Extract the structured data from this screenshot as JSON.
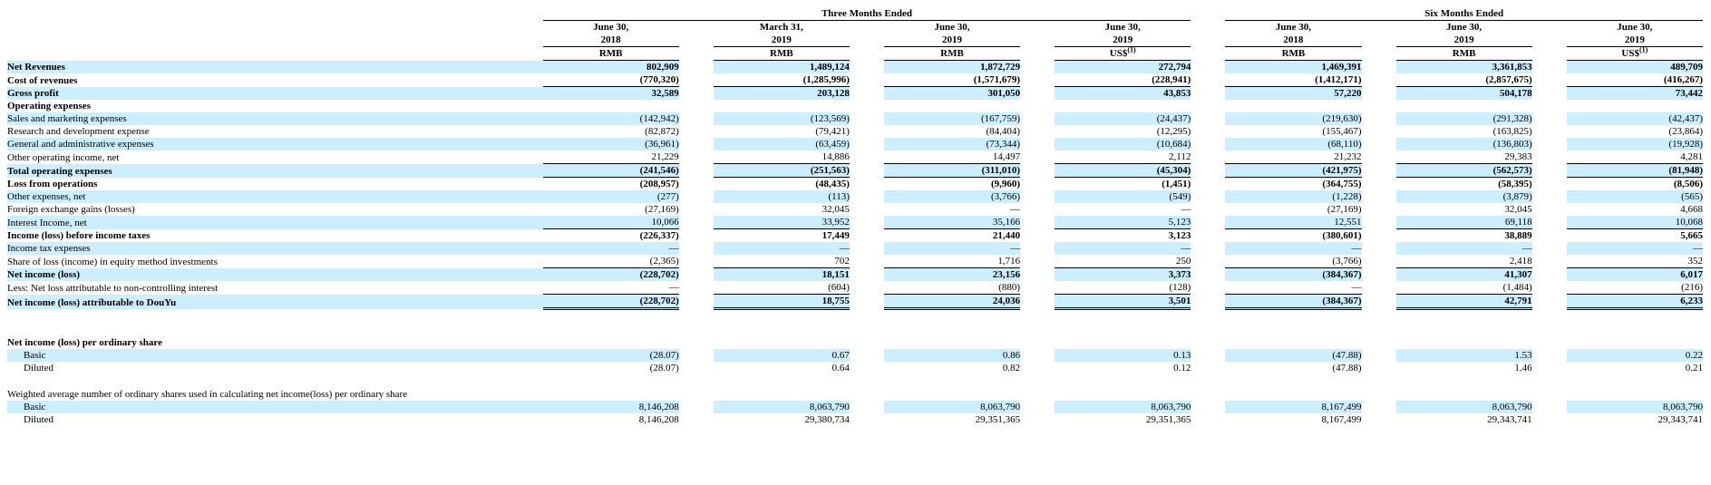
{
  "headers": {
    "group_three": "Three Months Ended",
    "group_six": "Six Months Ended",
    "columns": [
      {
        "l1": "June 30,",
        "l2": "2018",
        "cur": "RMB",
        "note": ""
      },
      {
        "l1": "March 31,",
        "l2": "2019",
        "cur": "RMB",
        "note": ""
      },
      {
        "l1": "June 30,",
        "l2": "2019",
        "cur": "RMB",
        "note": ""
      },
      {
        "l1": "June 30,",
        "l2": "2019",
        "cur": "US$",
        "note": "(1)"
      },
      {
        "l1": "June 30,",
        "l2": "2018",
        "cur": "RMB",
        "note": ""
      },
      {
        "l1": "June 30,",
        "l2": "2019",
        "cur": "RMB",
        "note": ""
      },
      {
        "l1": "June 30,",
        "l2": "2019",
        "cur": "US$",
        "note": "(1)"
      }
    ]
  },
  "rows": [
    {
      "label": "Net Revenues",
      "style": "bold",
      "vals": [
        "802,909",
        "1,489,124",
        "1,872,729",
        "272,794",
        "1,469,391",
        "3,361,853",
        "489,709"
      ],
      "rule": ""
    },
    {
      "label": "Cost of revenues",
      "style": "bold",
      "vals": [
        "(770,320)",
        "(1,285,996)",
        "(1,571,679)",
        "(228,941)",
        "(1,412,171)",
        "(2,857,675)",
        "(416,267)"
      ],
      "rule": "single"
    },
    {
      "label": "Gross profit",
      "style": "bold",
      "vals": [
        "32,589",
        "203,128",
        "301,050",
        "43,853",
        "57,220",
        "504,178",
        "73,442"
      ],
      "rule": ""
    },
    {
      "label": "Operating expenses",
      "style": "bold",
      "vals": [
        "",
        "",
        "",
        "",
        "",
        "",
        ""
      ],
      "rule": ""
    },
    {
      "label": "Sales and marketing expenses",
      "style": "",
      "vals": [
        "(142,942)",
        "(123,569)",
        "(167,759)",
        "(24,437)",
        "(219,630)",
        "(291,328)",
        "(42,437)"
      ],
      "rule": ""
    },
    {
      "label": "Research and development expense",
      "style": "",
      "vals": [
        "(82,872)",
        "(79,421)",
        "(84,404)",
        "(12,295)",
        "(155,467)",
        "(163,825)",
        "(23,864)"
      ],
      "rule": ""
    },
    {
      "label": "General and administrative expenses",
      "style": "",
      "vals": [
        "(36,961)",
        "(63,459)",
        "(73,344)",
        "(10,684)",
        "(68,110)",
        "(136,803)",
        "(19,928)"
      ],
      "rule": ""
    },
    {
      "label": "Other operating income, net",
      "style": "",
      "vals": [
        "21,229",
        "14,886",
        "14,497",
        "2,112",
        "21,232",
        "29,383",
        "4,281"
      ],
      "rule": "single"
    },
    {
      "label": "Total operating expenses",
      "style": "bold",
      "vals": [
        "(241,546)",
        "(251,563)",
        "(311,010)",
        "(45,304)",
        "(421,975)",
        "(562,573)",
        "(81,948)"
      ],
      "rule": "single"
    },
    {
      "label": "Loss from operations",
      "style": "bold",
      "vals": [
        "(208,957)",
        "(48,435)",
        "(9,960)",
        "(1,451)",
        "(364,755)",
        "(58,395)",
        "(8,506)"
      ],
      "rule": ""
    },
    {
      "label": "Other expenses, net",
      "style": "",
      "vals": [
        "(277)",
        "(113)",
        "(3,766)",
        "(549)",
        "(1,228)",
        "(3,879)",
        "(565)"
      ],
      "rule": ""
    },
    {
      "label": "Foreign exchange gains (losses)",
      "style": "",
      "vals": [
        "(27,169)",
        "32,045",
        "—",
        "—",
        "(27,169)",
        "32,045",
        "4,668"
      ],
      "rule": ""
    },
    {
      "label": "Interest Income, net",
      "style": "",
      "vals": [
        "10,066",
        "33,952",
        "35,166",
        "5,123",
        "12,551",
        "69,118",
        "10,068"
      ],
      "rule": "single"
    },
    {
      "label": "Income (loss) before income taxes",
      "style": "bold",
      "vals": [
        "(226,337)",
        "17,449",
        "21,440",
        "3,123",
        "(380,601)",
        "38,889",
        "5,665"
      ],
      "rule": ""
    },
    {
      "label": "Income tax expenses",
      "style": "",
      "vals": [
        "—",
        "—",
        "—",
        "—",
        "—",
        "—",
        "—"
      ],
      "rule": ""
    },
    {
      "label": "Share of loss (income) in equity method investments",
      "style": "",
      "vals": [
        "(2,365)",
        "702",
        "1,716",
        "250",
        "(3,766)",
        "2,418",
        "352"
      ],
      "rule": "single"
    },
    {
      "label": "Net income (loss)",
      "style": "bold",
      "vals": [
        "(228,702)",
        "18,151",
        "23,156",
        "3,373",
        "(384,367)",
        "41,307",
        "6,017"
      ],
      "rule": ""
    },
    {
      "label": "Less: Net loss attributable to non-controlling interest",
      "style": "",
      "vals": [
        "—",
        "(604)",
        "(880)",
        "(128)",
        "—",
        "(1,484)",
        "(216)"
      ],
      "rule": "single"
    },
    {
      "label": "Net income (loss) attributable to DouYu",
      "style": "bold",
      "vals": [
        "(228,702)",
        "18,755",
        "24,036",
        "3,501",
        "(384,367)",
        "42,791",
        "6,233"
      ],
      "rule": "double"
    },
    {
      "label": "",
      "style": "spacer",
      "vals": [
        "",
        "",
        "",
        "",
        "",
        "",
        ""
      ],
      "rule": ""
    },
    {
      "label": "",
      "style": "spacer",
      "vals": [
        "",
        "",
        "",
        "",
        "",
        "",
        ""
      ],
      "rule": ""
    },
    {
      "label": "Net income (loss) per ordinary share",
      "style": "bold",
      "vals": [
        "",
        "",
        "",
        "",
        "",
        "",
        ""
      ],
      "rule": ""
    },
    {
      "label": "Basic",
      "style": "ind",
      "vals": [
        "(28.07)",
        "0.67",
        "0.86",
        "0.13",
        "(47.88)",
        "1.53",
        "0.22"
      ],
      "rule": ""
    },
    {
      "label": "Diluted",
      "style": "ind",
      "vals": [
        "(28.07)",
        "0.64",
        "0.82",
        "0.12",
        "(47.88)",
        "1.46",
        "0.21"
      ],
      "rule": ""
    },
    {
      "label": "",
      "style": "spacer",
      "vals": [
        "",
        "",
        "",
        "",
        "",
        "",
        ""
      ],
      "rule": ""
    },
    {
      "label": "Weighted average number of ordinary shares used in calculating net income(loss) per ordinary share",
      "style": "",
      "vals": [
        "",
        "",
        "",
        "",
        "",
        "",
        ""
      ],
      "rule": ""
    },
    {
      "label": "Basic",
      "style": "ind",
      "vals": [
        "8,146,208",
        "8,063,790",
        "8,063,790",
        "8,063,790",
        "8,167,499",
        "8,063,790",
        "8,063,790"
      ],
      "rule": ""
    },
    {
      "label": "Diluted",
      "style": "ind",
      "vals": [
        "8,146,208",
        "29,380,734",
        "29,351,365",
        "29,351,365",
        "8,167,499",
        "29,343,741",
        "29,343,741"
      ],
      "rule": ""
    }
  ]
}
